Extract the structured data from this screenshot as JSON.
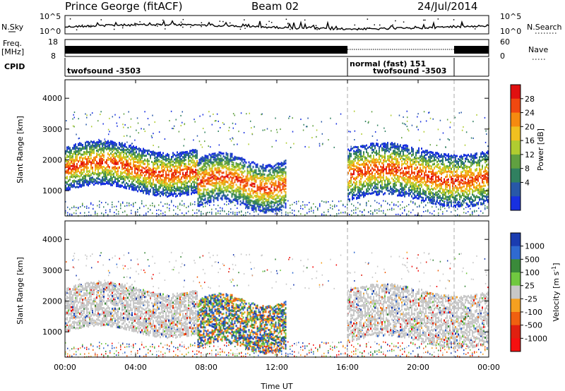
{
  "header": {
    "station": "Prince George (fitACF)",
    "beam": "Beam 02",
    "date": "24/Jul/2014"
  },
  "top_panel": {
    "left_label": "N.Sky",
    "left_ticks": [
      "10^5",
      "10^0"
    ],
    "right_label": "N.Search",
    "right_ticks": [
      "10^5",
      "10^0"
    ]
  },
  "freq_panel": {
    "left_label_line1": "Freq.",
    "left_label_line2": "[MHz]",
    "left_ticks": [
      "18",
      "8"
    ],
    "right_label": "Nave",
    "right_ticks": [
      "60",
      "0"
    ]
  },
  "cpid_panel": {
    "label": "CPID",
    "segments": [
      {
        "text": "twofsound -3503"
      },
      {
        "text": "normal (fast) 151"
      },
      {
        "text": "twofsound -3503"
      }
    ]
  },
  "axes": {
    "ylabel": "Slant Range [km]",
    "yticks": [
      "4000",
      "3000",
      "2000",
      "1000"
    ],
    "xticks": [
      "00:00",
      "04:00",
      "08:00",
      "12:00",
      "16:00",
      "20:00",
      "00:00"
    ],
    "xlabel": "Time UT"
  },
  "power_colorbar": {
    "label": "Power [dB]",
    "ticks": [
      "28",
      "24",
      "20",
      "16",
      "12",
      "8",
      "4"
    ],
    "colors": [
      "#e01010",
      "#f04810",
      "#f58a10",
      "#f0c020",
      "#b0cc30",
      "#60a040",
      "#308060",
      "#2858a8",
      "#1830e0"
    ]
  },
  "velocity_colorbar": {
    "label": "Velocity [m s",
    "label_sup": "-1",
    "label_end": "]",
    "ticks": [
      "1000",
      "500",
      "100",
      "25",
      "-25",
      "-100",
      "-500",
      "-1000"
    ],
    "colors": [
      "#1a3cb0",
      "#2f6ad0",
      "#3a8a3a",
      "#70c840",
      "#c8c8c8",
      "#f5a020",
      "#f06010",
      "#e02010",
      "#f51010"
    ]
  },
  "chart_data": {
    "type": "heatmap",
    "title": "Prince George (fitACF)",
    "x_range_hours_ut": [
      0,
      24
    ],
    "y_range_slant_range_km": [
      180,
      4600
    ],
    "mode_change_times_ut": [
      16.0,
      21.8
    ],
    "echo_bands": [
      {
        "t_start": 0,
        "t_end": 7.5,
        "range_low_km": 1200,
        "range_high_km": 2300,
        "peak_power_db": 28
      },
      {
        "t_start": 7.5,
        "t_end": 12.5,
        "range_low_km": 700,
        "range_high_km": 1900,
        "peak_power_db": 24
      },
      {
        "t_start": 16.0,
        "t_end": 24.0,
        "range_low_km": 900,
        "range_high_km": 2200,
        "peak_power_db": 24
      }
    ]
  }
}
